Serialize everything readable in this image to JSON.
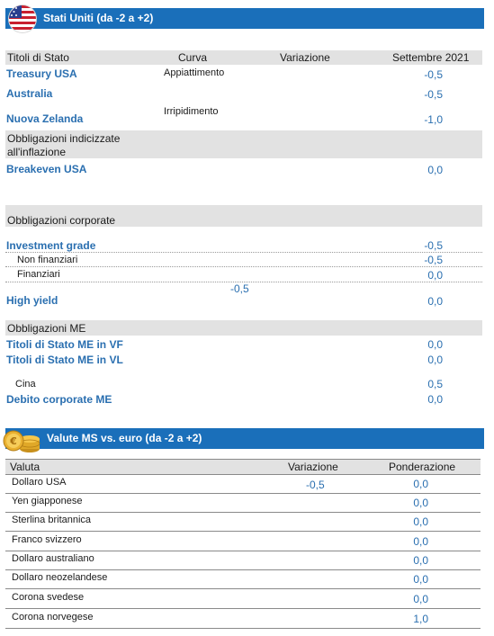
{
  "section1": {
    "title": "Stati Uniti (da -2 a +2)",
    "flag_icon": "us-flag-icon",
    "columns": [
      "Titoli di Stato",
      "Curva",
      "Variazione",
      "Settembre 2021"
    ],
    "government": [
      {
        "label": "Treasury USA",
        "curve": "Appiattimento",
        "value": "-0,5"
      },
      {
        "label": "Australia",
        "curve": "",
        "value": "-0,5"
      },
      {
        "label": "Nuova Zelanda",
        "curve": "Irripidimento",
        "value": "-1,0"
      }
    ],
    "inflation_header": "Obbligazioni indicizzate all'inflazione",
    "inflation": [
      {
        "label": "Breakeven USA",
        "value": "0,0"
      }
    ],
    "corporate_header": "Obbligazioni corporate",
    "corporate": [
      {
        "label": "Investment grade",
        "value": "-0,5"
      },
      {
        "label": "Non finanziari",
        "value": "-0,5"
      },
      {
        "label": "Finanziari",
        "value": "0,0"
      },
      {
        "label": "High yield",
        "value": "0,0"
      }
    ],
    "corporate_variation": "-0,5",
    "em_header": "Obbligazioni ME",
    "em": [
      {
        "label": "Titoli di Stato ME in VF",
        "value": "0,0"
      },
      {
        "label": "Titoli di Stato ME in VL",
        "value": "0,0"
      },
      {
        "label": "Cina",
        "value": "0,5"
      },
      {
        "label": "Debito corporate ME",
        "value": "0,0"
      }
    ]
  },
  "section2": {
    "title": "Valute MS vs. euro (da -2 a +2)",
    "coins_icon": "coins-icon",
    "columns": [
      "Valuta",
      "Variazione",
      "Ponderazione"
    ],
    "rows": [
      {
        "label": "Dollaro USA",
        "variation": "-0,5",
        "weight": "0,0"
      },
      {
        "label": "Yen giapponese",
        "variation": "",
        "weight": "0,0"
      },
      {
        "label": "Sterlina britannica",
        "variation": "",
        "weight": "0,0"
      },
      {
        "label": "Franco svizzero",
        "variation": "",
        "weight": "0,0"
      },
      {
        "label": "Dollaro australiano",
        "variation": "",
        "weight": "0,0"
      },
      {
        "label": "Dollaro neozelandese",
        "variation": "",
        "weight": "0,0"
      },
      {
        "label": "Corona svedese",
        "variation": "",
        "weight": "0,0"
      },
      {
        "label": "Corona norvegese",
        "variation": "",
        "weight": "1,0"
      }
    ]
  },
  "colors": {
    "header_bar": "#1a6fba",
    "value_text": "#2a6fb0",
    "band": "#e2e2e2"
  }
}
